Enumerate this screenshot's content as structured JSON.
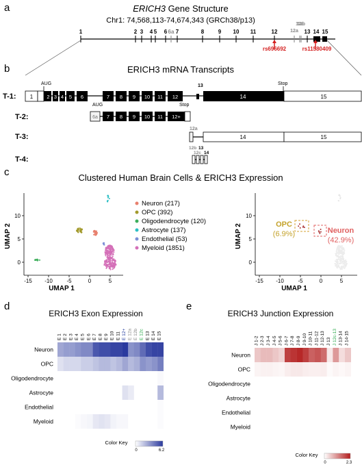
{
  "panels": {
    "a": {
      "letter": "a",
      "title_gene": "ERICH3",
      "title_rest": " Gene Structure",
      "coords": "Chr1: 74,568,113-74,674,343 (GRCh38/p13)",
      "exon_labels": [
        "1",
        "2",
        "3",
        "4",
        "5",
        "6",
        "6a",
        "7",
        "8",
        "9",
        "10",
        "11",
        "12",
        "12b",
        "12a",
        "12c",
        "13",
        "14",
        "15"
      ],
      "snp1": "rs696692",
      "snp2": "rs11580409"
    },
    "b": {
      "letter": "b",
      "title": "ERICH3 mRNA Transcripts",
      "transcripts": [
        "T-1:",
        "T-2:",
        "T-3:",
        "T-4:"
      ],
      "aug": "AUG",
      "stop": "Stop",
      "t1_exons": [
        "1",
        "2",
        "3",
        "4",
        "5",
        "6",
        "7",
        "8",
        "9",
        "10",
        "11",
        "12",
        "13",
        "14",
        "15"
      ],
      "t2_exons": [
        "6a",
        "7",
        "8",
        "9",
        "10",
        "11",
        "12+"
      ],
      "t3_exons": [
        "12a",
        "14",
        "15"
      ],
      "t4_exons": [
        "12b",
        "12c",
        "13",
        "14"
      ]
    },
    "c": {
      "letter": "c",
      "title": "Clustered Human Brain Cells & ERICH3 Expression",
      "xlabel": "UMAP 1",
      "ylabel": "UMAP 2",
      "xticks": [
        "-15",
        "-10",
        "-5",
        "0",
        "5"
      ],
      "yticks": [
        "0",
        "5",
        "10"
      ],
      "legend": [
        {
          "label": "Neuron (217)",
          "color": "#e8806e"
        },
        {
          "label": "OPC (392)",
          "color": "#a39a2c"
        },
        {
          "label": "Oligodendrocyte (120)",
          "color": "#3cae5a"
        },
        {
          "label": "Astrocyte (137)",
          "color": "#2bbfc4"
        },
        {
          "label": "Endothelial (53)",
          "color": "#7c8fd6"
        },
        {
          "label": "Myeloid (1851)",
          "color": "#d470b8"
        }
      ],
      "opc_label": "OPC",
      "opc_pct": "(6.9%)",
      "neuron_label": "Neuron",
      "neuron_pct": "(42.9%)"
    },
    "d": {
      "letter": "d",
      "title": "ERICH3 Exon Expression",
      "rows": [
        "Neuron",
        "OPC",
        "Oligodendrocyte",
        "Astrocyte",
        "Endothelial",
        "Myeloid"
      ],
      "columns": [
        "E 1",
        "E 2",
        "E 3",
        "E 4",
        "E 5",
        "E 6",
        "E 7",
        "E 8",
        "E 9",
        "E 10",
        "E 11",
        "E 12+",
        "E 12a",
        "E 12b",
        "E 12c",
        "E 13",
        "E 14",
        "E 15"
      ],
      "column_colors": [
        "#000",
        "#000",
        "#000",
        "#000",
        "#000",
        "#000",
        "#000",
        "#000",
        "#000",
        "#000",
        "#000",
        "#1f3a9e",
        "#888888",
        "#888888",
        "#2aa84a",
        "#000",
        "#000",
        "#000"
      ],
      "color_key": "Color Key",
      "key_min": "0",
      "key_max": "6.2",
      "key_color": "#2b3a9e",
      "values": [
        [
          0.45,
          0.5,
          0.5,
          0.55,
          0.6,
          0.6,
          0.85,
          0.9,
          0.9,
          0.95,
          0.95,
          1.0,
          0.55,
          0.6,
          0.75,
          0.9,
          0.95,
          0.95
        ],
        [
          0.15,
          0.2,
          0.2,
          0.2,
          0.25,
          0.25,
          0.3,
          0.35,
          0.35,
          0.3,
          0.35,
          0.45,
          0.35,
          0.4,
          0.55,
          0.5,
          0.55,
          0.65
        ],
        [
          0,
          0,
          0,
          0,
          0,
          0,
          0,
          0,
          0,
          0,
          0,
          0,
          0,
          0,
          0,
          0,
          0,
          0.03
        ],
        [
          0,
          0,
          0,
          0,
          0,
          0,
          0,
          0,
          0,
          0,
          0,
          0.15,
          0.1,
          0,
          0,
          0,
          0,
          0.35
        ],
        [
          0,
          0,
          0,
          0,
          0,
          0,
          0,
          0,
          0,
          0,
          0,
          0,
          0,
          0,
          0,
          0,
          0,
          0.02
        ],
        [
          0,
          0,
          0,
          0.02,
          0.04,
          0.05,
          0.12,
          0.14,
          0.12,
          0.06,
          0.04,
          0.04,
          0,
          0,
          0,
          0,
          0,
          0.02
        ]
      ]
    },
    "e": {
      "letter": "e",
      "title": "ERICH3 Junction Expression",
      "rows": [
        "Neuron",
        "OPC",
        "Oligodendrocyte",
        "Astrocyte",
        "Endothelial",
        "Myeloid"
      ],
      "columns": [
        "J 1-2",
        "J 2-3",
        "J 3-4",
        "J 4-5",
        "J 5-6",
        "J 6-7",
        "J 7-8",
        "J 8-9",
        "J 9-10",
        "J 10-11",
        "J 11-12",
        "J 12-13",
        "J 13",
        "J 12c-13",
        "J 13-14",
        "J 14-15"
      ],
      "column_colors": [
        "#000",
        "#000",
        "#000",
        "#000",
        "#000",
        "#000",
        "#000",
        "#000",
        "#000",
        "#000",
        "#000",
        "#000",
        "#000",
        "#2aa84a",
        "#000",
        "#000"
      ],
      "color_key": "Color Key",
      "key_min": "0",
      "key_max": "2.3",
      "key_color": "#b31d1d",
      "values": [
        [
          0.25,
          0.3,
          0.3,
          0.25,
          0.2,
          0.85,
          0.9,
          0.95,
          0.85,
          0.7,
          0.75,
          0.65,
          0.1,
          0.45,
          0.15,
          0.25
        ],
        [
          0.05,
          0.06,
          0.06,
          0.05,
          0.04,
          0.08,
          0.1,
          0.1,
          0.08,
          0.07,
          0.07,
          0.08,
          0.02,
          0.05,
          0.03,
          0.05
        ],
        [
          0,
          0,
          0,
          0,
          0,
          0,
          0,
          0,
          0,
          0,
          0,
          0,
          0,
          0,
          0,
          0
        ],
        [
          0,
          0,
          0,
          0,
          0,
          0,
          0,
          0,
          0,
          0,
          0,
          0,
          0,
          0,
          0,
          0
        ],
        [
          0,
          0,
          0,
          0,
          0,
          0,
          0,
          0,
          0,
          0,
          0,
          0,
          0,
          0,
          0,
          0
        ],
        [
          0,
          0,
          0,
          0,
          0,
          0,
          0,
          0,
          0,
          0,
          0,
          0,
          0,
          0,
          0,
          0
        ]
      ]
    }
  }
}
